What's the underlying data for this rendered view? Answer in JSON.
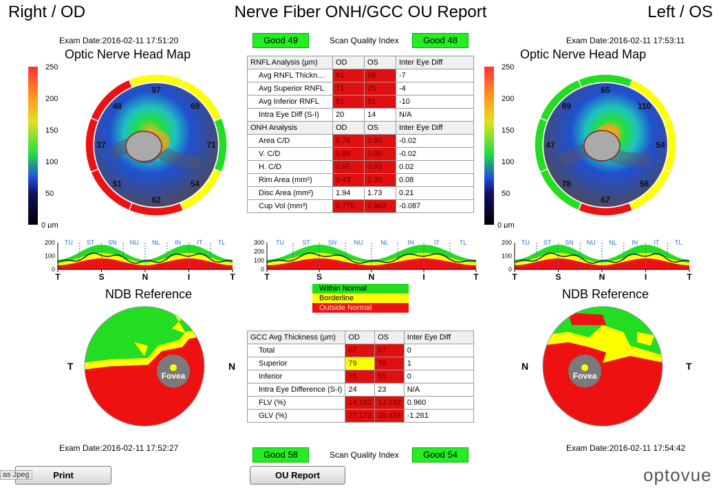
{
  "header": {
    "left": "Right / OD",
    "title": "Nerve Fiber ONH/GCC OU Report",
    "right": "Left / OS"
  },
  "top": {
    "exam_od": "Exam Date:2016-02-11 17:51:20",
    "exam_os": "Exam Date:2016-02-11 17:53:11",
    "quality_label": "Scan Quality Index",
    "quality_od": "Good  49",
    "quality_os": "Good  48"
  },
  "onh_title": "Optic Nerve Head Map",
  "colorbar": {
    "ticks": [
      "250",
      "200",
      "150",
      "100",
      "50",
      "0 μm"
    ]
  },
  "onh_map_od": {
    "sectors": [
      {
        "value": "97",
        "color": "#ffff00"
      },
      {
        "value": "69",
        "color": "#ffff00"
      },
      {
        "value": "71",
        "color": "#22dd22"
      },
      {
        "value": "54",
        "color": "#ffff00"
      },
      {
        "value": "62",
        "color": "#ee1111"
      },
      {
        "value": "51",
        "color": "#ee1111"
      },
      {
        "value": "37",
        "color": "#ee1111"
      },
      {
        "value": "48",
        "color": "#ee1111"
      }
    ]
  },
  "onh_map_os": {
    "sectors": [
      {
        "value": "65",
        "color": "#22dd22"
      },
      {
        "value": "110",
        "color": "#ffff00"
      },
      {
        "value": "54",
        "color": "#ffff00"
      },
      {
        "value": "56",
        "color": "#ffff00"
      },
      {
        "value": "67",
        "color": "#ee1111"
      },
      {
        "value": "78",
        "color": "#22dd22"
      },
      {
        "value": "47",
        "color": "#22dd22"
      },
      {
        "value": "69",
        "color": "#22dd22"
      }
    ]
  },
  "rnfl_table": {
    "header": [
      "RNFL Analysis (μm)",
      "OD",
      "OS",
      "Inter Eye Diff"
    ],
    "rows": [
      {
        "label": "Avg RNFL Thickn...",
        "od": "61",
        "os": "68",
        "diff": "-7",
        "od_c": "red",
        "os_c": "red"
      },
      {
        "label": "Avg Superior RNFL",
        "od": "71",
        "os": "75",
        "diff": "-4",
        "od_c": "red",
        "os_c": "red"
      },
      {
        "label": "Avg Inferior RNFL",
        "od": "51",
        "os": "61",
        "diff": "-10",
        "od_c": "red",
        "os_c": "red"
      },
      {
        "label": "Intra Eye Diff  (S-I)",
        "od": "20",
        "os": "14",
        "diff": "N/A",
        "od_c": "",
        "os_c": ""
      }
    ]
  },
  "onh_table": {
    "header": [
      "ONH Analysis",
      "OD",
      "OS",
      "Inter Eye Diff"
    ],
    "rows": [
      {
        "label": "Area C/D",
        "od": "0.78",
        "os": "0.80",
        "diff": "-0.02",
        "od_c": "red",
        "os_c": "red"
      },
      {
        "label": "V. C/D",
        "od": "0.88",
        "os": "0.90",
        "diff": "-0.02",
        "od_c": "red",
        "os_c": "red"
      },
      {
        "label": "H. C/D",
        "od": "0.95",
        "os": "0.93",
        "diff": "0.02",
        "od_c": "red",
        "os_c": "red"
      },
      {
        "label": "Rim Area (mm²)",
        "od": "0.43",
        "os": "0.35",
        "diff": "0.08",
        "od_c": "red",
        "os_c": "red"
      },
      {
        "label": "Disc Area (mm²)",
        "od": "1.94",
        "os": "1.73",
        "diff": "0.21",
        "od_c": "",
        "os_c": ""
      },
      {
        "label": "Cup Vol (mm³)",
        "od": "0.776",
        "os": "0.863",
        "diff": "-0.087",
        "od_c": "red",
        "os_c": "red"
      }
    ]
  },
  "tsnit": {
    "sectors": [
      "TU",
      "ST",
      "SN",
      "NU",
      "NL",
      "IN",
      "IT",
      "TL"
    ],
    "axis": [
      "T",
      "S",
      "N",
      "I",
      "T"
    ],
    "yticks_small": [
      "200",
      "100",
      "0"
    ],
    "yticks_mid": [
      "300",
      "200",
      "100",
      "0"
    ]
  },
  "legend": {
    "within": "Within Normal",
    "border": "Borderline",
    "outside": "Outside Normal"
  },
  "ndb": {
    "title": "NDB Reference",
    "fovea": "Fovea",
    "od_left": "T",
    "od_right": "N",
    "os_left": "N",
    "os_right": "T"
  },
  "gcc_table": {
    "header": [
      "GCC Avg Thickness (μm)",
      "OD",
      "OS",
      "Inter Eye Diff"
    ],
    "rows": [
      {
        "label": "Total",
        "od": "67",
        "os": "67",
        "diff": "0",
        "od_c": "red",
        "os_c": "red"
      },
      {
        "label": "Superior",
        "od": "79",
        "os": "78",
        "diff": "1",
        "od_c": "yel",
        "os_c": "red"
      },
      {
        "label": "Inferior",
        "od": "55",
        "os": "55",
        "diff": "0",
        "od_c": "red",
        "os_c": "red"
      },
      {
        "label": "Intra Eye Difference (S-I)",
        "od": "24",
        "os": "23",
        "diff": "N/A",
        "od_c": "",
        "os_c": ""
      },
      {
        "label": "FLV (%)",
        "od": "14.192",
        "os": "13.232",
        "diff": "0.960",
        "od_c": "red",
        "os_c": "red"
      },
      {
        "label": "GLV (%)",
        "od": "27.173",
        "os": "28.434",
        "diff": "-1.261",
        "od_c": "red",
        "os_c": "red"
      }
    ]
  },
  "bottom": {
    "exam_od": "Exam Date:2016-02-11 17:52:27",
    "exam_os": "Exam Date:2016-02-11 17:54:42",
    "quality_label": "Scan Quality Index",
    "quality_od": "Good  58",
    "quality_os": "Good  54"
  },
  "buttons": {
    "tab_label": "as Jpeg",
    "print": "Print",
    "ou_report": "OU Report"
  },
  "logo": "optovue"
}
